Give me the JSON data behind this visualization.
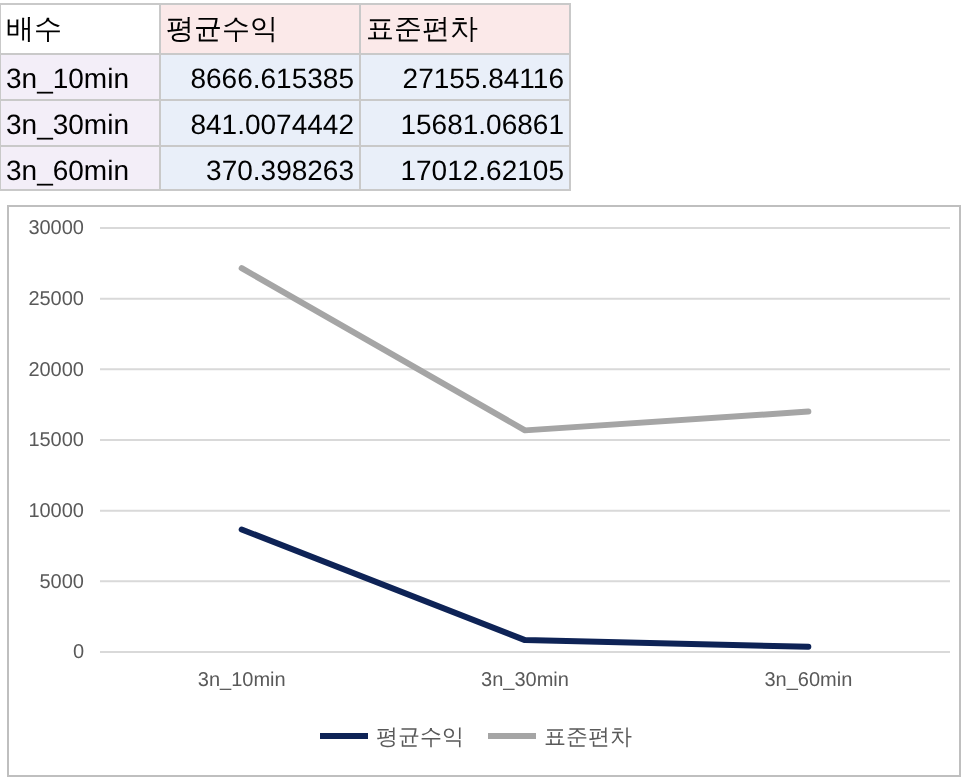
{
  "chart_data": {
    "type": "line",
    "annotations": [
      "배수",
      "평균수익",
      "표준편차",
      "3n_10min",
      "8666.615385",
      "27155.84116",
      "3n_30min",
      "841.0074442",
      "15681.06861",
      "3n_60min",
      "370.398263",
      "17012.62105"
    ],
    "categories": [
      "3n_10min",
      "3n_30min",
      "3n_60min"
    ],
    "series": [
      {
        "name": "평균수익",
        "color": "#0e2356",
        "values": [
          8666.615385,
          841.0074442,
          370.398263
        ]
      },
      {
        "name": "표준편차",
        "color": "#a5a5a5",
        "values": [
          27155.84116,
          15681.06861,
          17012.62105
        ]
      }
    ],
    "ylim": [
      0,
      30000
    ],
    "yticks": [
      0,
      5000,
      10000,
      15000,
      20000,
      25000,
      30000
    ],
    "grid": "y",
    "legend": "bottom",
    "marker": "none",
    "line_style": "solid"
  }
}
